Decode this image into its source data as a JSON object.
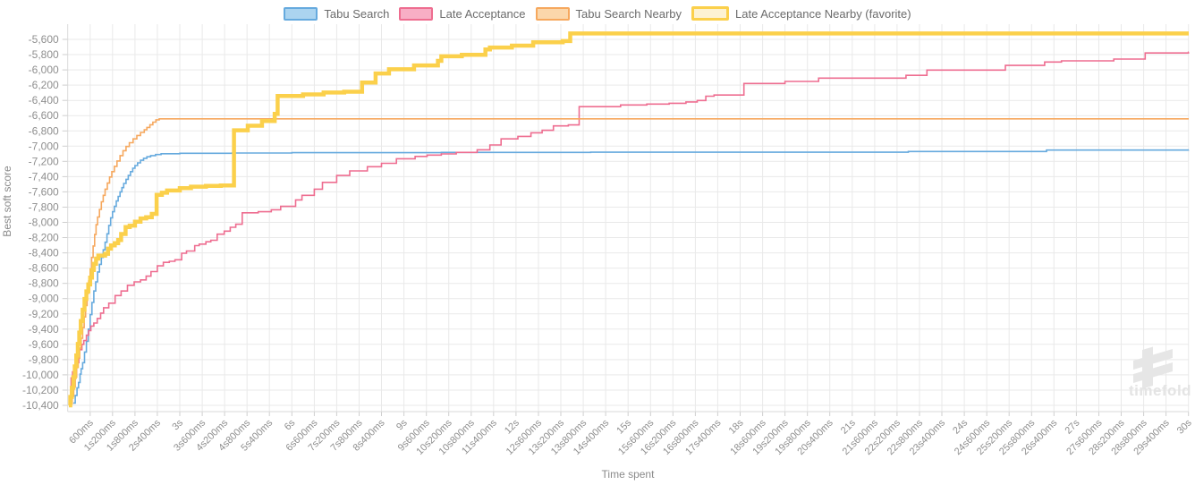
{
  "axes": {
    "x_title": "Time spent",
    "y_title": "Best soft score"
  },
  "watermark": {
    "text": "timefold",
    "logo": "timefold-logo"
  },
  "legend": {
    "position": "top"
  },
  "chart_data": {
    "type": "line",
    "step": true,
    "title": "",
    "x_axis": {
      "title": "Time spent",
      "unit": "ms",
      "min": 0,
      "max": 30000,
      "tick_interval_ms": 600,
      "tick_labels": [
        "600ms",
        "1s200ms",
        "1s800ms",
        "2s400ms",
        "3s",
        "3s600ms",
        "4s200ms",
        "4s800ms",
        "5s400ms",
        "6s",
        "6s600ms",
        "7s200ms",
        "7s800ms",
        "8s400ms",
        "9s",
        "9s600ms",
        "10s200ms",
        "10s800ms",
        "11s400ms",
        "12s",
        "12s600ms",
        "13s200ms",
        "13s800ms",
        "14s400ms",
        "15s",
        "15s600ms",
        "16s200ms",
        "16s800ms",
        "17s400ms",
        "18s",
        "18s600ms",
        "19s200ms",
        "19s800ms",
        "20s400ms",
        "21s",
        "21s600ms",
        "22s200ms",
        "22s800ms",
        "23s400ms",
        "24s",
        "24s600ms",
        "25s200ms",
        "25s800ms",
        "26s400ms",
        "27s",
        "27s600ms",
        "28s200ms",
        "28s800ms",
        "29s400ms",
        "30s"
      ]
    },
    "y_axis": {
      "title": "Best soft score",
      "min": -10400,
      "max": -5600,
      "tick_interval": 200,
      "tick_labels": [
        "-5,600",
        "-5,800",
        "-6,000",
        "-6,200",
        "-6,400",
        "-6,600",
        "-6,800",
        "-7,000",
        "-7,200",
        "-7,400",
        "-7,600",
        "-7,800",
        "-8,000",
        "-8,200",
        "-8,400",
        "-8,600",
        "-8,800",
        "-9,000",
        "-9,200",
        "-9,400",
        "-9,600",
        "-9,800",
        "-10,000",
        "-10,200",
        "-10,400"
      ]
    },
    "grid": true,
    "series": [
      {
        "id": "tabu-search",
        "name": "Tabu Search",
        "color": "#66aade",
        "swatch_fill": "#abd4f0",
        "line_width": 1.6,
        "favorite": false,
        "final_score": -7050,
        "points": [
          [
            150,
            -10370
          ],
          [
            200,
            -10270
          ],
          [
            250,
            -10170
          ],
          [
            290,
            -10100
          ],
          [
            330,
            -9990
          ],
          [
            360,
            -9920
          ],
          [
            400,
            -9840
          ],
          [
            450,
            -9700
          ],
          [
            500,
            -9560
          ],
          [
            550,
            -9400
          ],
          [
            600,
            -9210
          ],
          [
            650,
            -9050
          ],
          [
            700,
            -8900
          ],
          [
            750,
            -8780
          ],
          [
            800,
            -8650
          ],
          [
            850,
            -8550
          ],
          [
            900,
            -8460
          ],
          [
            950,
            -8360
          ],
          [
            1000,
            -8260
          ],
          [
            1050,
            -8150
          ],
          [
            1100,
            -8040
          ],
          [
            1150,
            -7940
          ],
          [
            1200,
            -7860
          ],
          [
            1250,
            -7790
          ],
          [
            1300,
            -7720
          ],
          [
            1350,
            -7660
          ],
          [
            1400,
            -7600
          ],
          [
            1450,
            -7545
          ],
          [
            1500,
            -7490
          ],
          [
            1560,
            -7435
          ],
          [
            1620,
            -7385
          ],
          [
            1680,
            -7335
          ],
          [
            1740,
            -7290
          ],
          [
            1800,
            -7255
          ],
          [
            1870,
            -7220
          ],
          [
            1950,
            -7185
          ],
          [
            2030,
            -7160
          ],
          [
            2120,
            -7140
          ],
          [
            2220,
            -7125
          ],
          [
            2350,
            -7110
          ],
          [
            2500,
            -7100
          ],
          [
            3000,
            -7094
          ],
          [
            4400,
            -7090
          ],
          [
            6000,
            -7086
          ],
          [
            10000,
            -7082
          ],
          [
            14000,
            -7080
          ],
          [
            22500,
            -7070
          ],
          [
            26200,
            -7052
          ],
          [
            30000,
            -7050
          ]
        ]
      },
      {
        "id": "late-acceptance",
        "name": "Late Acceptance",
        "color": "#ee6d90",
        "swatch_fill": "#f8aec5",
        "line_width": 1.6,
        "favorite": false,
        "final_score": -5768,
        "points": [
          [
            50,
            -10350
          ],
          [
            90,
            -10040
          ],
          [
            130,
            -9960
          ],
          [
            200,
            -9890
          ],
          [
            260,
            -9840
          ],
          [
            300,
            -9670
          ],
          [
            380,
            -9600
          ],
          [
            430,
            -9550
          ],
          [
            500,
            -9480
          ],
          [
            560,
            -9420
          ],
          [
            620,
            -9360
          ],
          [
            700,
            -9320
          ],
          [
            790,
            -9260
          ],
          [
            880,
            -9190
          ],
          [
            960,
            -9120
          ],
          [
            1100,
            -9060
          ],
          [
            1270,
            -8960
          ],
          [
            1430,
            -8900
          ],
          [
            1600,
            -8825
          ],
          [
            1780,
            -8780
          ],
          [
            1950,
            -8755
          ],
          [
            2100,
            -8705
          ],
          [
            2230,
            -8645
          ],
          [
            2400,
            -8570
          ],
          [
            2560,
            -8525
          ],
          [
            2720,
            -8510
          ],
          [
            2870,
            -8490
          ],
          [
            3050,
            -8405
          ],
          [
            3180,
            -8375
          ],
          [
            3400,
            -8305
          ],
          [
            3520,
            -8285
          ],
          [
            3700,
            -8255
          ],
          [
            3830,
            -8235
          ],
          [
            4000,
            -8155
          ],
          [
            4190,
            -8115
          ],
          [
            4350,
            -8065
          ],
          [
            4500,
            -8025
          ],
          [
            4670,
            -7875
          ],
          [
            5100,
            -7860
          ],
          [
            5450,
            -7835
          ],
          [
            5700,
            -7790
          ],
          [
            6100,
            -7705
          ],
          [
            6270,
            -7645
          ],
          [
            6600,
            -7565
          ],
          [
            6820,
            -7475
          ],
          [
            7200,
            -7385
          ],
          [
            7550,
            -7325
          ],
          [
            8020,
            -7270
          ],
          [
            8400,
            -7225
          ],
          [
            8800,
            -7165
          ],
          [
            9300,
            -7135
          ],
          [
            9620,
            -7118
          ],
          [
            10000,
            -7102
          ],
          [
            10400,
            -7082
          ],
          [
            10960,
            -7048
          ],
          [
            11300,
            -6985
          ],
          [
            11600,
            -6905
          ],
          [
            12050,
            -6872
          ],
          [
            12400,
            -6825
          ],
          [
            12700,
            -6792
          ],
          [
            13000,
            -6735
          ],
          [
            13400,
            -6722
          ],
          [
            13690,
            -6482
          ],
          [
            14800,
            -6460
          ],
          [
            15500,
            -6448
          ],
          [
            16100,
            -6438
          ],
          [
            16550,
            -6420
          ],
          [
            16850,
            -6402
          ],
          [
            17080,
            -6345
          ],
          [
            17300,
            -6330
          ],
          [
            18100,
            -6178
          ],
          [
            19200,
            -6152
          ],
          [
            20100,
            -6108
          ],
          [
            22440,
            -6072
          ],
          [
            23000,
            -6002
          ],
          [
            25100,
            -5942
          ],
          [
            26150,
            -5897
          ],
          [
            26600,
            -5882
          ],
          [
            28000,
            -5858
          ],
          [
            28840,
            -5778
          ],
          [
            30000,
            -5768
          ]
        ]
      },
      {
        "id": "tabu-search-nearby",
        "name": "Tabu Search Nearby",
        "color": "#f6a85e",
        "swatch_fill": "#fbd7ab",
        "line_width": 1.6,
        "favorite": false,
        "final_score": -6642,
        "points": [
          [
            80,
            -10380
          ],
          [
            120,
            -10280
          ],
          [
            160,
            -10160
          ],
          [
            200,
            -10030
          ],
          [
            240,
            -9900
          ],
          [
            280,
            -9780
          ],
          [
            320,
            -9650
          ],
          [
            360,
            -9520
          ],
          [
            400,
            -9380
          ],
          [
            440,
            -9240
          ],
          [
            480,
            -9090
          ],
          [
            520,
            -8930
          ],
          [
            560,
            -8770
          ],
          [
            600,
            -8610
          ],
          [
            640,
            -8460
          ],
          [
            680,
            -8310
          ],
          [
            720,
            -8160
          ],
          [
            760,
            -8030
          ],
          [
            800,
            -7930
          ],
          [
            850,
            -7830
          ],
          [
            900,
            -7730
          ],
          [
            950,
            -7645
          ],
          [
            1000,
            -7565
          ],
          [
            1060,
            -7485
          ],
          [
            1120,
            -7405
          ],
          [
            1180,
            -7335
          ],
          [
            1250,
            -7265
          ],
          [
            1320,
            -7195
          ],
          [
            1400,
            -7125
          ],
          [
            1480,
            -7060
          ],
          [
            1560,
            -7005
          ],
          [
            1650,
            -6955
          ],
          [
            1750,
            -6905
          ],
          [
            1850,
            -6860
          ],
          [
            1950,
            -6820
          ],
          [
            2050,
            -6785
          ],
          [
            2120,
            -6755
          ],
          [
            2200,
            -6720
          ],
          [
            2280,
            -6685
          ],
          [
            2360,
            -6655
          ],
          [
            2450,
            -6642
          ],
          [
            30000,
            -6642
          ]
        ]
      },
      {
        "id": "late-acceptance-nearby",
        "name": "Late Acceptance Nearby (favorite)",
        "color": "#fbd04b",
        "swatch_fill": "#fdf2d2",
        "line_width": 4.5,
        "favorite": true,
        "final_score": -5522,
        "points": [
          [
            30,
            -10400
          ],
          [
            70,
            -10290
          ],
          [
            110,
            -10170
          ],
          [
            150,
            -10030
          ],
          [
            190,
            -9890
          ],
          [
            230,
            -9745
          ],
          [
            270,
            -9595
          ],
          [
            310,
            -9445
          ],
          [
            350,
            -9295
          ],
          [
            400,
            -9145
          ],
          [
            450,
            -9005
          ],
          [
            500,
            -8905
          ],
          [
            550,
            -8815
          ],
          [
            600,
            -8725
          ],
          [
            650,
            -8625
          ],
          [
            700,
            -8545
          ],
          [
            760,
            -8475
          ],
          [
            820,
            -8435
          ],
          [
            1000,
            -8412
          ],
          [
            1080,
            -8345
          ],
          [
            1160,
            -8302
          ],
          [
            1260,
            -8272
          ],
          [
            1350,
            -8232
          ],
          [
            1430,
            -8152
          ],
          [
            1550,
            -8062
          ],
          [
            1660,
            -8042
          ],
          [
            1800,
            -7992
          ],
          [
            1950,
            -7948
          ],
          [
            2100,
            -7932
          ],
          [
            2250,
            -7888
          ],
          [
            2380,
            -7638
          ],
          [
            2520,
            -7612
          ],
          [
            2660,
            -7582
          ],
          [
            3000,
            -7552
          ],
          [
            3300,
            -7532
          ],
          [
            3700,
            -7522
          ],
          [
            4100,
            -7515
          ],
          [
            4450,
            -6792
          ],
          [
            4820,
            -6732
          ],
          [
            5200,
            -6672
          ],
          [
            5540,
            -6578
          ],
          [
            5620,
            -6342
          ],
          [
            6300,
            -6322
          ],
          [
            6850,
            -6297
          ],
          [
            7400,
            -6287
          ],
          [
            7880,
            -6167
          ],
          [
            8240,
            -6047
          ],
          [
            8600,
            -5992
          ],
          [
            9270,
            -5942
          ],
          [
            9910,
            -5882
          ],
          [
            10000,
            -5822
          ],
          [
            10550,
            -5802
          ],
          [
            11180,
            -5732
          ],
          [
            11300,
            -5707
          ],
          [
            11890,
            -5682
          ],
          [
            12460,
            -5637
          ],
          [
            13250,
            -5622
          ],
          [
            13450,
            -5522
          ],
          [
            30000,
            -5522
          ]
        ]
      }
    ]
  }
}
